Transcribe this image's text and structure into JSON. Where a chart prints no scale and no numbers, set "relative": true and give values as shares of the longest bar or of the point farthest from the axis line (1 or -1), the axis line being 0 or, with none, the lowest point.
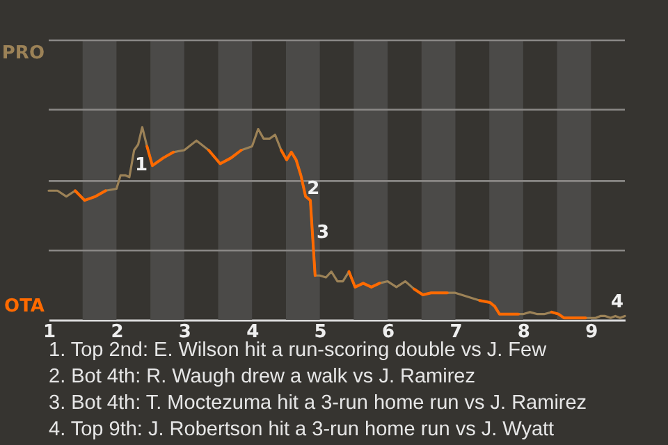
{
  "chart_data": {
    "type": "line",
    "relative": true,
    "x": [
      1.0,
      1.13,
      1.26,
      1.39,
      1.53,
      1.69,
      1.84,
      2.0,
      2.06,
      2.13,
      2.19,
      2.26,
      2.32,
      2.38,
      2.45,
      2.53,
      2.69,
      2.84,
      3.0,
      3.18,
      3.36,
      3.53,
      3.69,
      3.84,
      4.0,
      4.09,
      4.17,
      4.26,
      4.34,
      4.43,
      4.51,
      4.58,
      4.65,
      4.72,
      4.79,
      4.86,
      4.93,
      5.0,
      5.09,
      5.17,
      5.26,
      5.34,
      5.43,
      5.52,
      5.64,
      5.76,
      5.88,
      6.0,
      6.13,
      6.26,
      6.39,
      6.52,
      6.64,
      6.76,
      6.88,
      7.0,
      7.18,
      7.36,
      7.51,
      7.58,
      7.65,
      7.72,
      7.79,
      7.86,
      7.93,
      8.0,
      8.1,
      8.21,
      8.31,
      8.42,
      8.52,
      8.6,
      8.68,
      8.76,
      8.84,
      8.92,
      9.0,
      9.07,
      9.14,
      9.21,
      9.29,
      9.36,
      9.43,
      9.5
    ],
    "series": [
      {
        "color": "#9c8257",
        "values": [
          0.67,
          0.67,
          0.64,
          0.67,
          0.62,
          0.64,
          0.67,
          0.68,
          0.75,
          0.75,
          0.74,
          0.88,
          0.91,
          1,
          0.9,
          0.8,
          0.84,
          0.87,
          0.88,
          0.93,
          0.88,
          0.81,
          0.84,
          0.88,
          0.9,
          0.99,
          0.94,
          0.94,
          0.96,
          0.88,
          0.83,
          0.87,
          0.83,
          0.75,
          0.64,
          0.62,
          0.23,
          0.23,
          0.22,
          0.25,
          0.2,
          0.2,
          0.25,
          0.17,
          0.19,
          0.17,
          0.19,
          0.2,
          0.17,
          0.2,
          0.16,
          0.13,
          0.14,
          0.14,
          0.14,
          0.14,
          0.12,
          0.1,
          0.09,
          0.07,
          0.03,
          0.03,
          0.03,
          0.03,
          0.03,
          0.03,
          0.04,
          0.03,
          0.03,
          0.04,
          0.03,
          0.01,
          0.01,
          0.01,
          0.01,
          0.01,
          0.01,
          0.01,
          0.02,
          0.02,
          0.01,
          0.02,
          0.01,
          0.02
        ]
      },
      {
        "color": "#ff6a00",
        "values": [
          null,
          null,
          null,
          0.67,
          0.62,
          0.64,
          0.67,
          null,
          null,
          null,
          null,
          null,
          null,
          null,
          0.9,
          0.8,
          0.84,
          0.87,
          null,
          null,
          0.88,
          0.81,
          0.84,
          0.88,
          null,
          null,
          null,
          null,
          null,
          0.88,
          0.83,
          0.87,
          0.83,
          0.75,
          0.64,
          0.62,
          0.23,
          null,
          null,
          null,
          null,
          null,
          0.25,
          0.17,
          0.19,
          0.17,
          0.19,
          null,
          null,
          null,
          0.16,
          0.13,
          0.14,
          0.14,
          0.14,
          null,
          null,
          0.1,
          0.09,
          0.07,
          0.03,
          0.03,
          0.03,
          0.03,
          0.03,
          null,
          null,
          null,
          null,
          0.04,
          0.03,
          0.01,
          0.01,
          0.01,
          0.01,
          0.01,
          null,
          null,
          null,
          null,
          null,
          null,
          null,
          null
        ]
      }
    ],
    "xlim": [
      1,
      9.5
    ],
    "xticks": [
      1,
      2,
      3,
      4,
      5,
      6,
      7,
      8,
      9
    ],
    "ref_lines": [
      {
        "axis": "y",
        "value": 0.36,
        "color": "#8a8886"
      },
      {
        "axis": "y",
        "value": 0.72,
        "color": "#8a8886"
      },
      {
        "axis": "y",
        "value": 1.09,
        "color": "#8a8886"
      },
      {
        "axis": "y",
        "value": 1.45,
        "label": "PRO",
        "color": "#8a8886"
      }
    ],
    "bands": [
      {
        "axis": "x",
        "from": 1.5,
        "to": 2,
        "color": "#4b4a48"
      },
      {
        "axis": "x",
        "from": 2.5,
        "to": 3,
        "color": "#4b4a48"
      },
      {
        "axis": "x",
        "from": 3.5,
        "to": 4,
        "color": "#4b4a48"
      },
      {
        "axis": "x",
        "from": 4.5,
        "to": 5,
        "color": "#4b4a48"
      },
      {
        "axis": "x",
        "from": 5.5,
        "to": 6,
        "color": "#4b4a48"
      },
      {
        "axis": "x",
        "from": 6.5,
        "to": 7,
        "color": "#4b4a48"
      },
      {
        "axis": "x",
        "from": 7.5,
        "to": 8,
        "color": "#4b4a48"
      },
      {
        "axis": "x",
        "from": 8.5,
        "to": 9,
        "color": "#4b4a48"
      }
    ],
    "annotations": [
      {
        "text": "1",
        "x": 2.19,
        "y": 0.74
      },
      {
        "text": "2",
        "x": 4.79,
        "y": 0.64
      },
      {
        "text": "3",
        "x": 4.89,
        "y": 0.39
      },
      {
        "text": "4",
        "x": 9.5,
        "y": 0.02
      },
      "OTA",
      "1. Top 2nd: E. Wilson hit a run-scoring double vs J. Few",
      "2. Bot 4th: R. Waugh drew a walk vs J. Ramirez",
      "3. Bot 4th: T. Moctezuma hit a 3-run home run vs J. Ramirez",
      "4. Top 9th: J. Robertson hit a 3-run home run vs J. Wyatt"
    ]
  }
}
